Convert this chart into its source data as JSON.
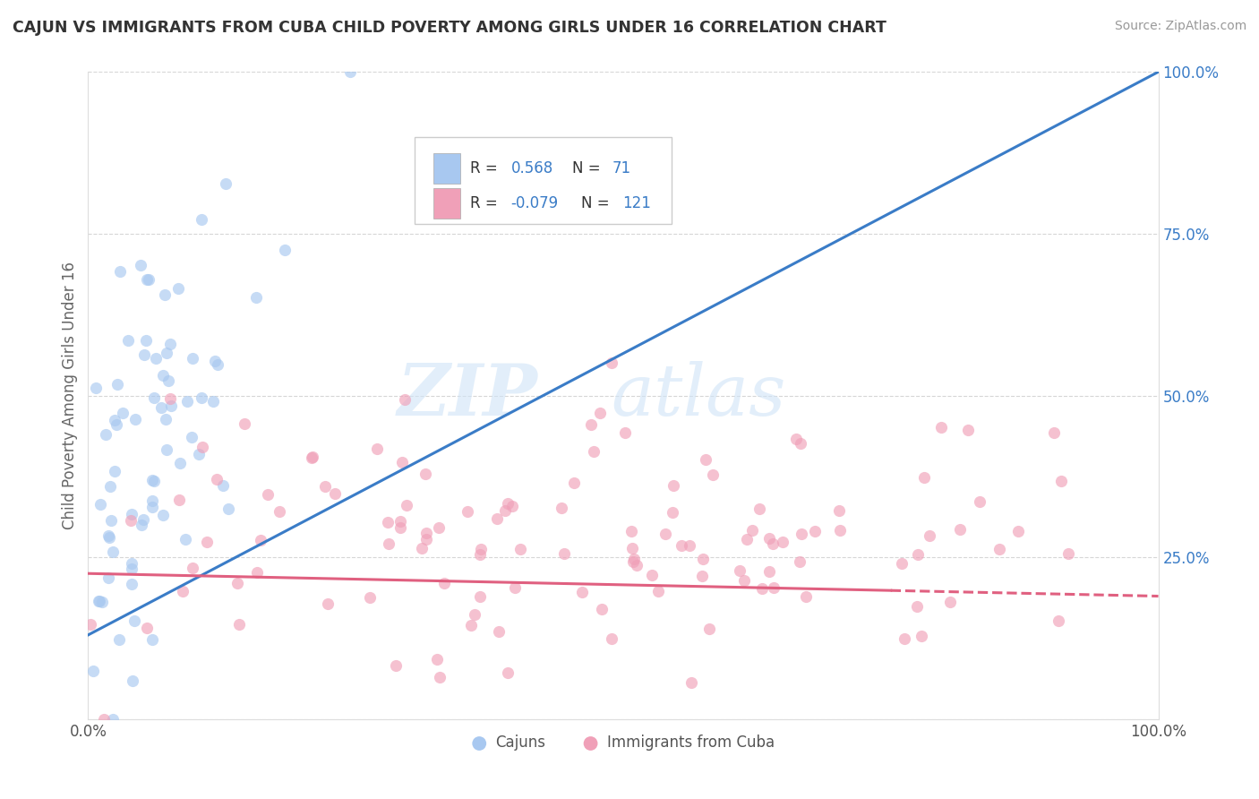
{
  "title": "CAJUN VS IMMIGRANTS FROM CUBA CHILD POVERTY AMONG GIRLS UNDER 16 CORRELATION CHART",
  "source": "Source: ZipAtlas.com",
  "ylabel": "Child Poverty Among Girls Under 16",
  "xlim": [
    0,
    1
  ],
  "ylim": [
    0,
    1
  ],
  "series1_name": "Cajuns",
  "series1_R": 0.568,
  "series1_N": 71,
  "series1_color": "#a8c8f0",
  "series1_line_color": "#3a7cc7",
  "series2_name": "Immigrants from Cuba",
  "series2_R": -0.079,
  "series2_N": 121,
  "series2_color": "#f0a0b8",
  "series2_line_color": "#e06080",
  "watermark_zip": "ZIP",
  "watermark_atlas": "atlas",
  "background_color": "#ffffff",
  "grid_color": "#cccccc",
  "title_color": "#333333",
  "legend_R_color": "#3a7cc7",
  "tick_color": "#3a7cc7",
  "seed1": 42,
  "seed2": 123
}
